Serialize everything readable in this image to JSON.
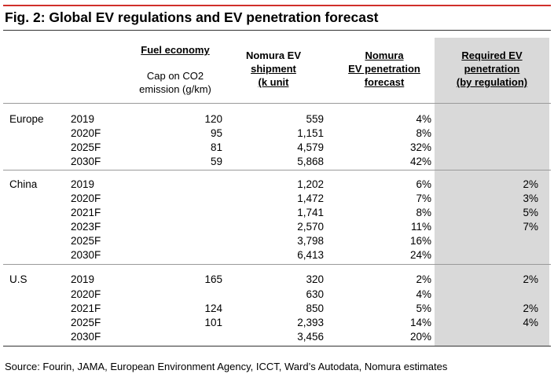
{
  "title": "Fig. 2: Global EV regulations and EV penetration forecast",
  "headers": {
    "fuel_economy": "Fuel economy",
    "cap_line1": "Cap on CO2",
    "cap_line2": "emission (g/km)",
    "ship_line1": "Nomura EV",
    "ship_line2": "shipment",
    "ship_line3": "(k unit",
    "fcst_line1": "Nomura",
    "fcst_line2": "EV penetration",
    "fcst_line3": "forecast",
    "req_line1": "Required EV",
    "req_line2": "penetration",
    "req_line3": "(by regulation)"
  },
  "rows": [
    {
      "region": "Europe",
      "year": "2019",
      "fuel": "120",
      "ship": "559",
      "fcst": "4%",
      "req": ""
    },
    {
      "region": "",
      "year": "2020F",
      "fuel": "95",
      "ship": "1,151",
      "fcst": "8%",
      "req": ""
    },
    {
      "region": "",
      "year": "2025F",
      "fuel": "81",
      "ship": "4,579",
      "fcst": "32%",
      "req": ""
    },
    {
      "region": "",
      "year": "2030F",
      "fuel": "59",
      "ship": "5,868",
      "fcst": "42%",
      "req": ""
    },
    {
      "region": "China",
      "year": "2019",
      "fuel": "",
      "ship": "1,202",
      "fcst": "6%",
      "req": "2%"
    },
    {
      "region": "",
      "year": "2020F",
      "fuel": "",
      "ship": "1,472",
      "fcst": "7%",
      "req": "3%"
    },
    {
      "region": "",
      "year": "2021F",
      "fuel": "",
      "ship": "1,741",
      "fcst": "8%",
      "req": "5%"
    },
    {
      "region": "",
      "year": "2023F",
      "fuel": "",
      "ship": "2,570",
      "fcst": "11%",
      "req": "7%"
    },
    {
      "region": "",
      "year": "2025F",
      "fuel": "",
      "ship": "3,798",
      "fcst": "16%",
      "req": ""
    },
    {
      "region": "",
      "year": "2030F",
      "fuel": "",
      "ship": "6,413",
      "fcst": "24%",
      "req": ""
    },
    {
      "region": "U.S",
      "year": "2019",
      "fuel": "165",
      "ship": "320",
      "fcst": "2%",
      "req": "2%"
    },
    {
      "region": "",
      "year": "2020F",
      "fuel": "",
      "ship": "630",
      "fcst": "4%",
      "req": ""
    },
    {
      "region": "",
      "year": "2021F",
      "fuel": "124",
      "ship": "850",
      "fcst": "5%",
      "req": "2%"
    },
    {
      "region": "",
      "year": "2025F",
      "fuel": "101",
      "ship": "2,393",
      "fcst": "14%",
      "req": "4%"
    },
    {
      "region": "",
      "year": "2030F",
      "fuel": "",
      "ship": "3,456",
      "fcst": "20%",
      "req": ""
    }
  ],
  "source": "Source: Fourin, JAMA, European Environment Agency, ICCT, Ward’s Autodata, Nomura estimates"
}
